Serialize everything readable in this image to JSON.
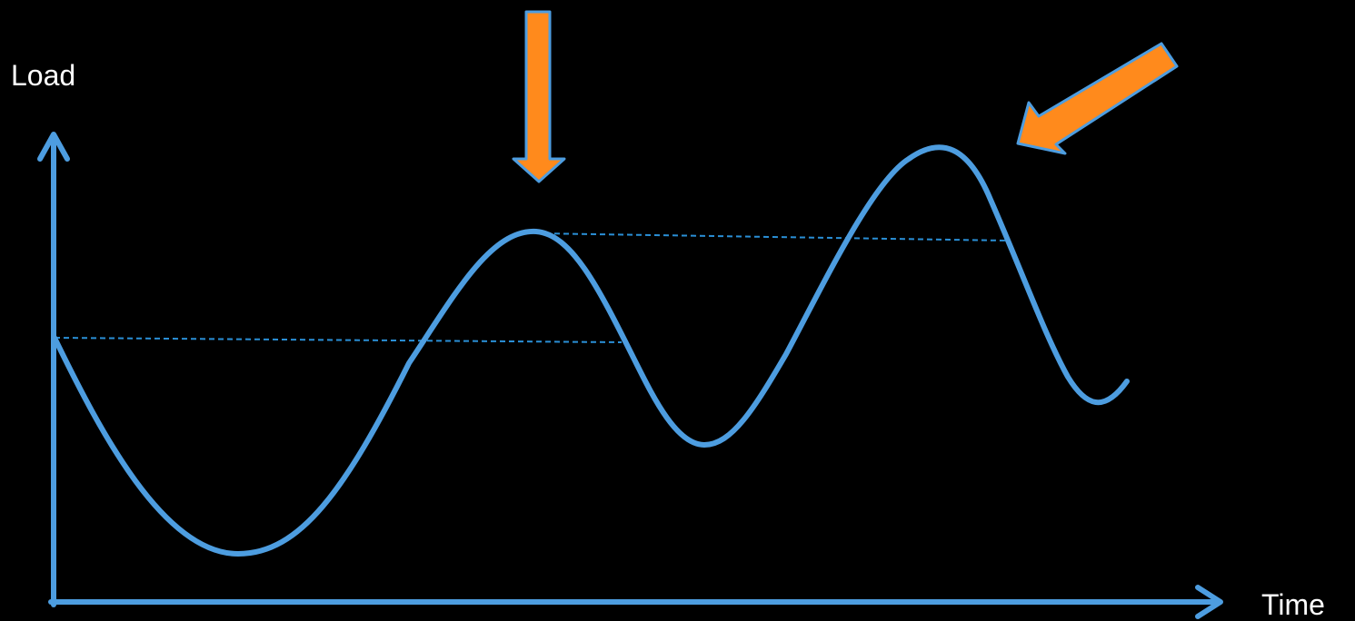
{
  "axes": {
    "y_label": "Load",
    "x_label": "Time"
  },
  "colors": {
    "background": "#000000",
    "axis": "#4d9de0",
    "curve": "#4d9de0",
    "reference_line": "#2a8fd6",
    "arrow_fill": "#ff8a1c",
    "arrow_stroke": "#4d9de0",
    "label_text": "#ffffff"
  },
  "icons": {
    "peak_arrow_1": "down-arrow-icon",
    "peak_arrow_2": "diagonal-arrow-icon"
  }
}
